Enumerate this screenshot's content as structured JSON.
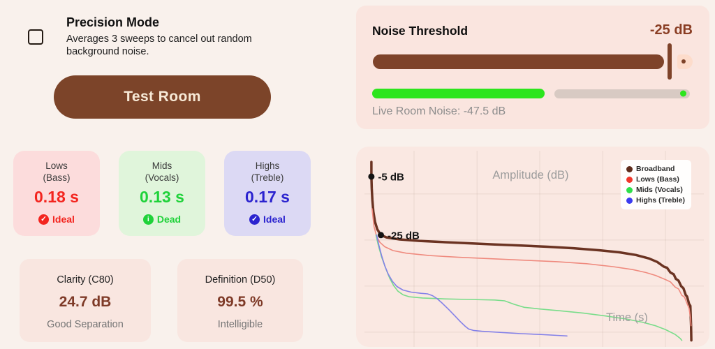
{
  "precision_mode": {
    "title": "Precision Mode",
    "description": "Averages 3 sweeps to cancel out random background noise.",
    "checked": false
  },
  "test_button": {
    "label": "Test Room"
  },
  "rt60_cards": [
    {
      "band": "Lows",
      "qualifier": "(Bass)",
      "value": "0.18 s",
      "status": "Ideal",
      "icon": "check",
      "accent": "#f3251f",
      "bg": "#fcdcdc"
    },
    {
      "band": "Mids",
      "qualifier": "(Vocals)",
      "value": "0.13 s",
      "status": "Dead",
      "icon": "info",
      "accent": "#1fd23a",
      "bg": "#e0f5db"
    },
    {
      "band": "Highs",
      "qualifier": "(Treble)",
      "value": "0.17 s",
      "status": "Ideal",
      "icon": "check",
      "accent": "#2b23cf",
      "bg": "#dcd9f4"
    }
  ],
  "clarity_cards": [
    {
      "title": "Clarity (C80)",
      "value": "24.7 dB",
      "subtitle": "Good Separation"
    },
    {
      "title": "Definition (D50)",
      "value": "99.5 %",
      "subtitle": "Intelligible"
    }
  ],
  "noise_threshold": {
    "title": "Noise Threshold",
    "value": "-25 dB",
    "slider_percent": 94,
    "slider_color": "#7e432a",
    "noise_percent": 56,
    "noise_color": "#2ce51d",
    "live_label": "Live Room Noise: -47.5 dB"
  },
  "chart_data": {
    "type": "line",
    "title": "",
    "xlabel": "Time (s)",
    "ylabel": "Amplitude (dB)",
    "xlim": [
      0,
      1
    ],
    "ylim": [
      -63,
      0
    ],
    "grid": true,
    "legend_position": "top-right",
    "annotations": [
      {
        "label": "-5 dB",
        "x": 0.004,
        "y": -5
      },
      {
        "label": "-25 dB",
        "x": 0.033,
        "y": -25
      }
    ],
    "series": [
      {
        "name": "Broadband",
        "line_color": "#6b3322",
        "dot_color": "#5f2c1c",
        "width": 3.5,
        "points": [
          [
            0.004,
            0
          ],
          [
            0.004,
            -5
          ],
          [
            0.005,
            -9
          ],
          [
            0.007,
            -13
          ],
          [
            0.01,
            -17
          ],
          [
            0.015,
            -20.5
          ],
          [
            0.022,
            -23
          ],
          [
            0.033,
            -25
          ],
          [
            0.05,
            -25.8
          ],
          [
            0.09,
            -26.5
          ],
          [
            0.15,
            -27
          ],
          [
            0.22,
            -27.4
          ],
          [
            0.3,
            -27.8
          ],
          [
            0.38,
            -28.2
          ],
          [
            0.46,
            -28.6
          ],
          [
            0.54,
            -29
          ],
          [
            0.62,
            -29.5
          ],
          [
            0.7,
            -30.2
          ],
          [
            0.76,
            -30.9
          ],
          [
            0.81,
            -31.8
          ],
          [
            0.85,
            -33
          ],
          [
            0.875,
            -34.2
          ],
          [
            0.895,
            -35.8
          ],
          [
            0.905,
            -36.2
          ],
          [
            0.915,
            -37.8
          ],
          [
            0.925,
            -38.4
          ],
          [
            0.932,
            -40
          ],
          [
            0.94,
            -40.6
          ],
          [
            0.948,
            -42.5
          ],
          [
            0.955,
            -43.2
          ],
          [
            0.962,
            -45.5
          ],
          [
            0.966,
            -46
          ],
          [
            0.972,
            -48.5
          ],
          [
            0.976,
            -49.2
          ],
          [
            0.978,
            -56
          ],
          [
            0.979,
            -61
          ]
        ]
      },
      {
        "name": "Lows (Bass)",
        "line_color": "#ef8a7e",
        "dot_color": "#f2362b",
        "width": 1.6,
        "points": [
          [
            0.006,
            -16
          ],
          [
            0.012,
            -22
          ],
          [
            0.02,
            -25.5
          ],
          [
            0.03,
            -27.5
          ],
          [
            0.045,
            -29
          ],
          [
            0.07,
            -30.3
          ],
          [
            0.11,
            -31.2
          ],
          [
            0.18,
            -32
          ],
          [
            0.27,
            -32.6
          ],
          [
            0.37,
            -33.1
          ],
          [
            0.47,
            -33.6
          ],
          [
            0.57,
            -34.1
          ],
          [
            0.66,
            -34.8
          ],
          [
            0.74,
            -35.8
          ],
          [
            0.8,
            -36.8
          ],
          [
            0.84,
            -37.8
          ],
          [
            0.87,
            -38.8
          ],
          [
            0.9,
            -40.2
          ],
          [
            0.915,
            -41
          ],
          [
            0.93,
            -42.8
          ],
          [
            0.94,
            -43.4
          ],
          [
            0.95,
            -45.6
          ],
          [
            0.958,
            -46.2
          ],
          [
            0.965,
            -48.2
          ],
          [
            0.972,
            -50
          ],
          [
            0.976,
            -53
          ],
          [
            0.978,
            -56
          ]
        ]
      },
      {
        "name": "Mids (Vocals)",
        "line_color": "#79dd8a",
        "dot_color": "#2ee04b",
        "width": 1.6,
        "points": [
          [
            0.018,
            -25
          ],
          [
            0.025,
            -28.5
          ],
          [
            0.035,
            -32.5
          ],
          [
            0.048,
            -36.5
          ],
          [
            0.06,
            -39.8
          ],
          [
            0.072,
            -42.3
          ],
          [
            0.085,
            -44.2
          ],
          [
            0.1,
            -45.4
          ],
          [
            0.12,
            -46.1
          ],
          [
            0.16,
            -46.5
          ],
          [
            0.22,
            -46.8
          ],
          [
            0.3,
            -47
          ],
          [
            0.38,
            -47.2
          ],
          [
            0.41,
            -47.5
          ],
          [
            0.44,
            -48.7
          ],
          [
            0.47,
            -49.7
          ],
          [
            0.52,
            -50.3
          ],
          [
            0.58,
            -50.9
          ],
          [
            0.65,
            -51.7
          ],
          [
            0.72,
            -52.7
          ],
          [
            0.78,
            -53.7
          ],
          [
            0.83,
            -54.8
          ],
          [
            0.87,
            -56
          ],
          [
            0.9,
            -57.3
          ],
          [
            0.93,
            -59
          ],
          [
            0.945,
            -60.3
          ],
          [
            0.95,
            -61
          ]
        ]
      },
      {
        "name": "Highs (Treble)",
        "line_color": "#8481e8",
        "dot_color": "#3b3cf0",
        "width": 1.6,
        "points": [
          [
            0.02,
            -25
          ],
          [
            0.027,
            -28.5
          ],
          [
            0.035,
            -32
          ],
          [
            0.045,
            -35.5
          ],
          [
            0.055,
            -38.3
          ],
          [
            0.068,
            -40.8
          ],
          [
            0.082,
            -42.6
          ],
          [
            0.1,
            -43.8
          ],
          [
            0.125,
            -44.5
          ],
          [
            0.155,
            -44.9
          ],
          [
            0.175,
            -45.1
          ],
          [
            0.19,
            -45.7
          ],
          [
            0.205,
            -46.8
          ],
          [
            0.22,
            -48.3
          ],
          [
            0.24,
            -50.5
          ],
          [
            0.26,
            -52.8
          ],
          [
            0.275,
            -54.6
          ],
          [
            0.29,
            -56.2
          ],
          [
            0.3,
            -57.1
          ],
          [
            0.315,
            -57.6
          ],
          [
            0.34,
            -57.9
          ],
          [
            0.4,
            -58.3
          ],
          [
            0.46,
            -58.7
          ],
          [
            0.52,
            -59
          ],
          [
            0.57,
            -59.3
          ],
          [
            0.6,
            -59.5
          ]
        ]
      }
    ]
  }
}
